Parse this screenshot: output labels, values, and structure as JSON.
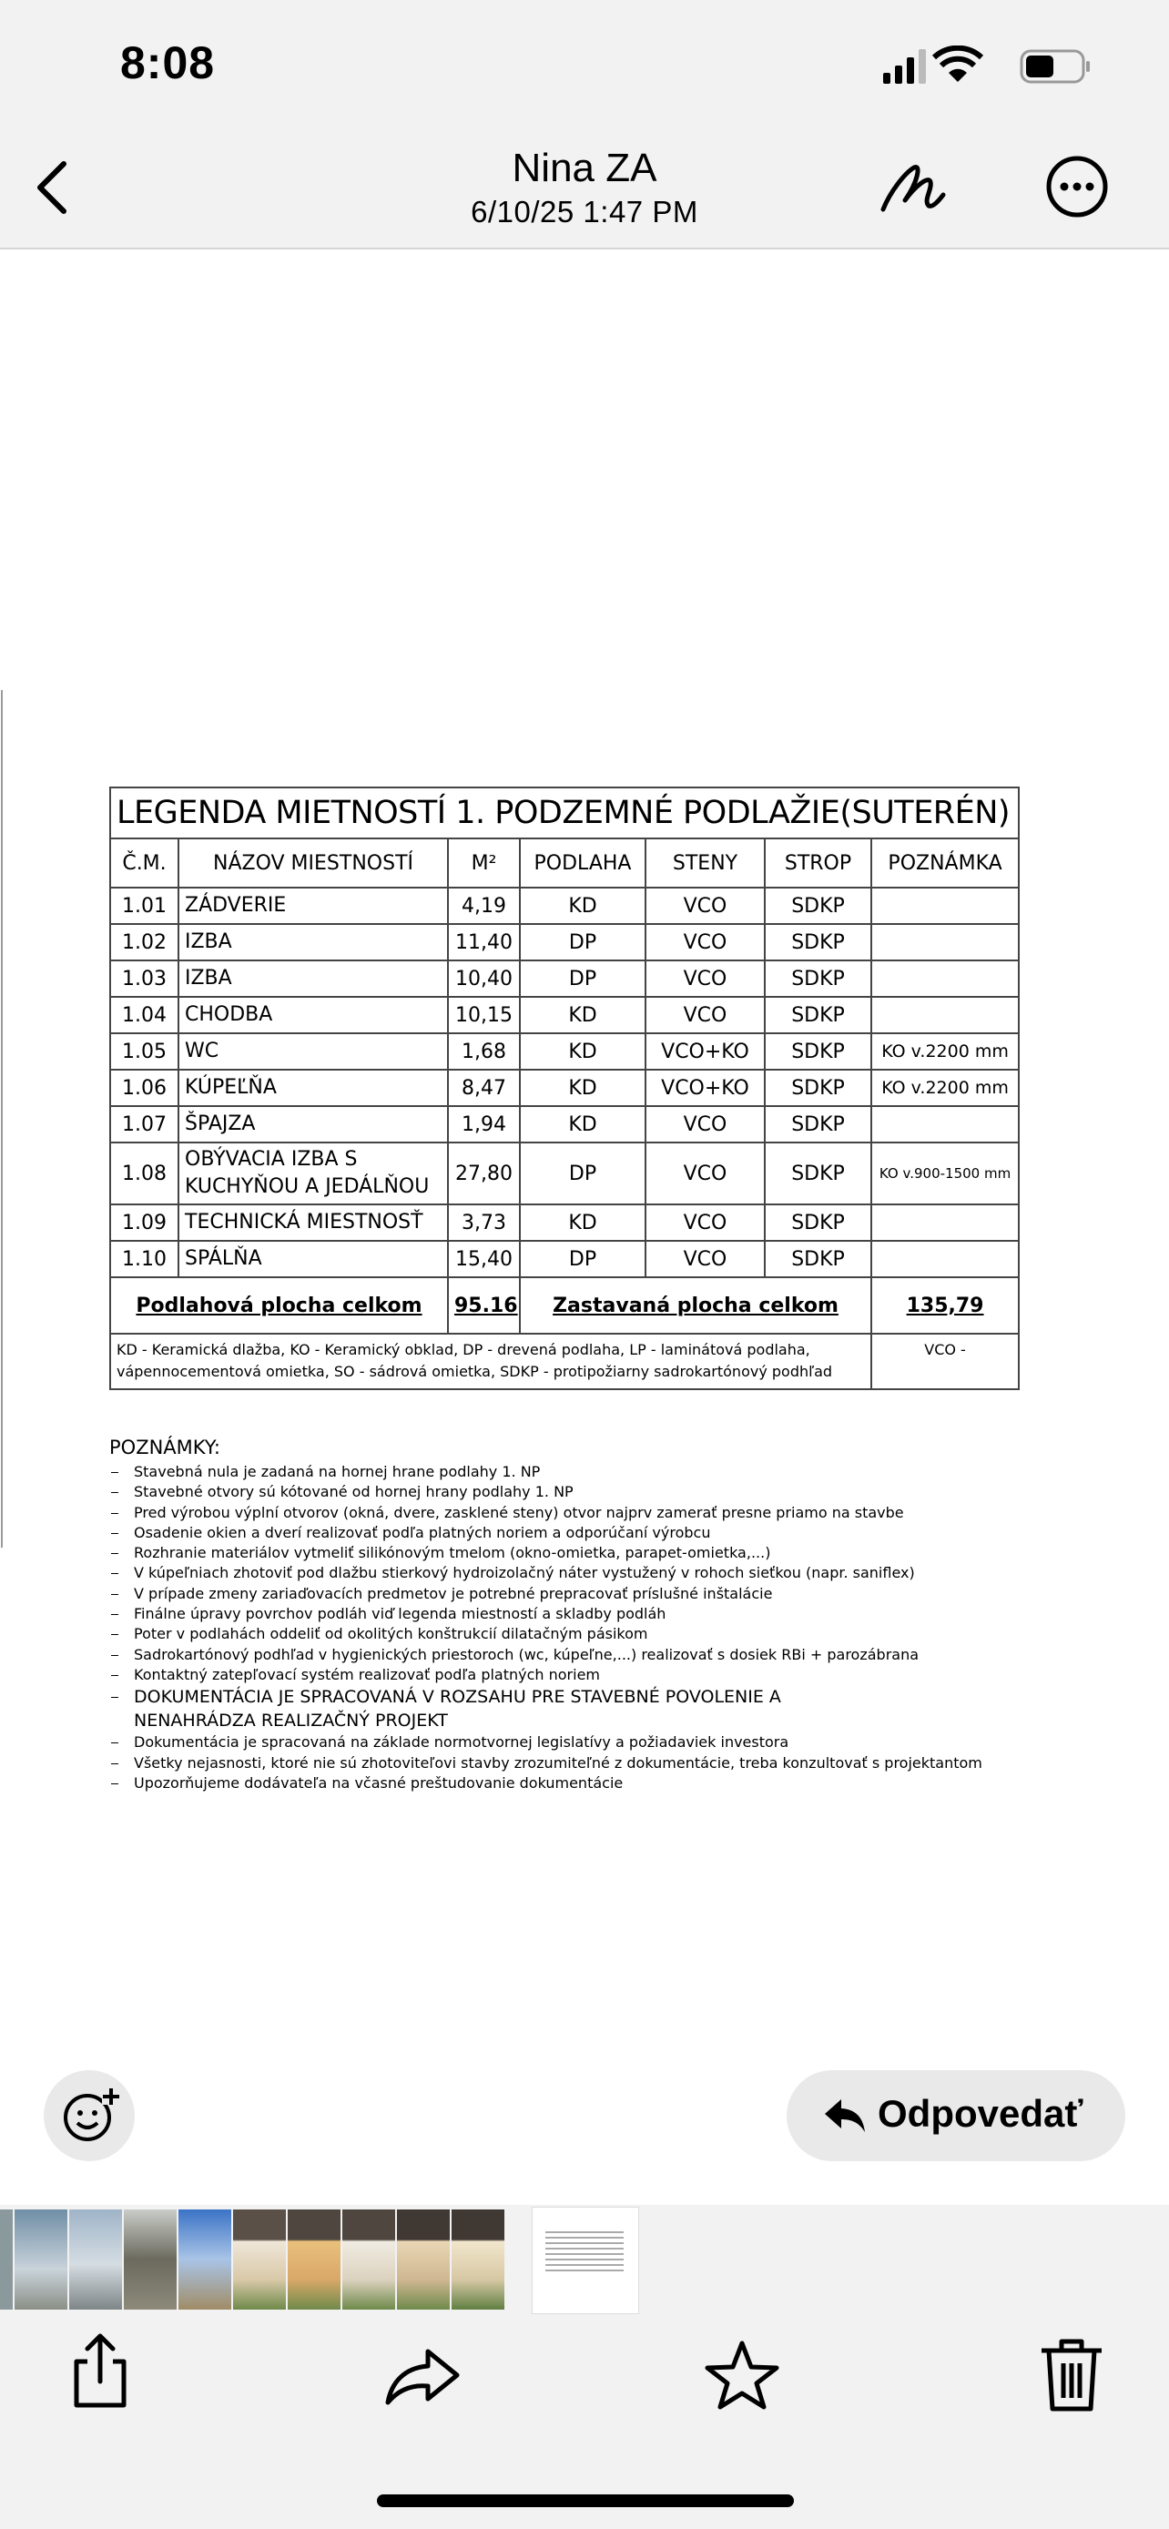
{
  "status_bar": {
    "time": "8:08"
  },
  "header": {
    "title": "Nina ZA",
    "date": "6/10/25 1:47 PM"
  },
  "document": {
    "table": {
      "title": "LEGENDA MIETNOSTÍ 1. PODZEMNÉ PODLAŽIE(SUTERÉN)",
      "columns": [
        "Č.M.",
        "NÁZOV MIESTNOSTÍ",
        "M²",
        "PODLAHA",
        "STENY",
        "STROP",
        "POZNÁMKA"
      ],
      "rows": [
        {
          "no": "1.01",
          "name": "ZÁDVERIE",
          "area": "4,19",
          "floor": "KD",
          "walls": "VCO",
          "ceiling": "SDKP"
        },
        {
          "no": "1.02",
          "name": "IZBA",
          "area": "11,40",
          "floor": "DP",
          "walls": "VCO",
          "ceiling": "SDKP"
        },
        {
          "no": "1.03",
          "name": "IZBA",
          "area": "10,40",
          "floor": "DP",
          "walls": "VCO",
          "ceiling": "SDKP"
        },
        {
          "no": "1.04",
          "name": "CHODBA",
          "area": "10,15",
          "floor": "KD",
          "walls": "VCO",
          "ceiling": "SDKP"
        },
        {
          "no": "1.05",
          "name": "WC",
          "area": "1,68",
          "floor": "KD",
          "walls": "VCO+KO",
          "ceiling": "SDKP",
          "note": "KO v.2200 mm"
        },
        {
          "no": "1.06",
          "name": "KÚPEĽŇA",
          "area": "8,47",
          "floor": "KD",
          "walls": "VCO+KO",
          "ceiling": "SDKP",
          "note": "KO v.2200 mm"
        },
        {
          "no": "1.07",
          "name": "ŠPAJZA",
          "area": "1,94",
          "floor": "KD",
          "walls": "VCO",
          "ceiling": "SDKP"
        },
        {
          "no": "1.08",
          "name": "OBÝVACIA IZBA S KUCHYŇOU A JEDÁLŇOU",
          "area": "27,80",
          "floor": "DP",
          "walls": "VCO",
          "ceiling": "SDKP",
          "note": "KO v.900-1500 mm"
        },
        {
          "no": "1.09",
          "name": "TECHNICKÁ MIESTNOSŤ",
          "area": "3,73",
          "floor": "KD",
          "walls": "VCO",
          "ceiling": "SDKP"
        },
        {
          "no": "1.10",
          "name": "SPÁLŇA",
          "area": "15,40",
          "floor": "DP",
          "walls": "VCO",
          "ceiling": "SDKP"
        }
      ],
      "totals": {
        "floor_label": "Podlahová plocha celkom",
        "floor_value": "95.16",
        "built_label": "Zastavaná plocha celkom",
        "built_value": "135,79"
      },
      "legend": "KD - Keramická dlažba, KO - Keramický obklad, DP - drevená podlaha, LP - laminátová podlaha, vápennocementová omietka, SO - sádrová omietka, SDKP - protipožiarny sadrokartónový podhľad",
      "legend_extra": "VCO -"
    },
    "notes": {
      "heading": "POZNÁMKY:",
      "items": [
        "Stavebná nula je zadaná na hornej hrane podlahy 1. NP",
        "Stavebné otvory sú kótované od hornej hrany podlahy 1. NP",
        "Pred výrobou výplní otvorov (okná, dvere, zasklené steny) otvor najprv zamerať presne priamo na stavbe",
        "Osadenie okien a dverí realizovať podľa platných noriem a odporúčaní výrobcu",
        "Rozhranie materiálov vytmeliť silikónovým tmelom (okno-omietka, parapet-omietka,...)",
        "V kúpeľniach zhotoviť pod dlažbu stierkový hydroizolačný náter vystužený v rohoch sieťkou (napr. saniflex)",
        "V prípade zmeny zariaďovacích predmetov je potrebné prepracovať príslušné inštalácie",
        "Finálne úpravy povrchov podláh viď legenda miestností a skladby podláh",
        "Poter v podlahách oddeliť od okolitých konštrukcií dilatačným pásikom",
        "Sadrokartónový podhľad v hygienických priestoroch (wc, kúpeľne,...) realizovať s dosiek RBi + parozábrana",
        "Kontaktný zatepľovací systém realizovať podľa platných noriem",
        "DOKUMENTÁCIA JE SPRACOVANÁ V ROZSAHU PRE STAVEBNÉ POVOLENIE A NENAHRÁDZA REALIZAČNÝ PROJEKT",
        "Dokumentácia je spracovaná na základe normotvornej legislatívy a požiadaviek investora",
        "Všetky nejasnosti, ktoré nie sú zhotoviteľovi stavby zrozumiteľné z dokumentácie, treba konzultovať s projektantom",
        "Upozorňujeme dodávateľa na včasné preštudovanie dokumentácie"
      ]
    }
  },
  "actions": {
    "reply": "Odpovedať"
  }
}
